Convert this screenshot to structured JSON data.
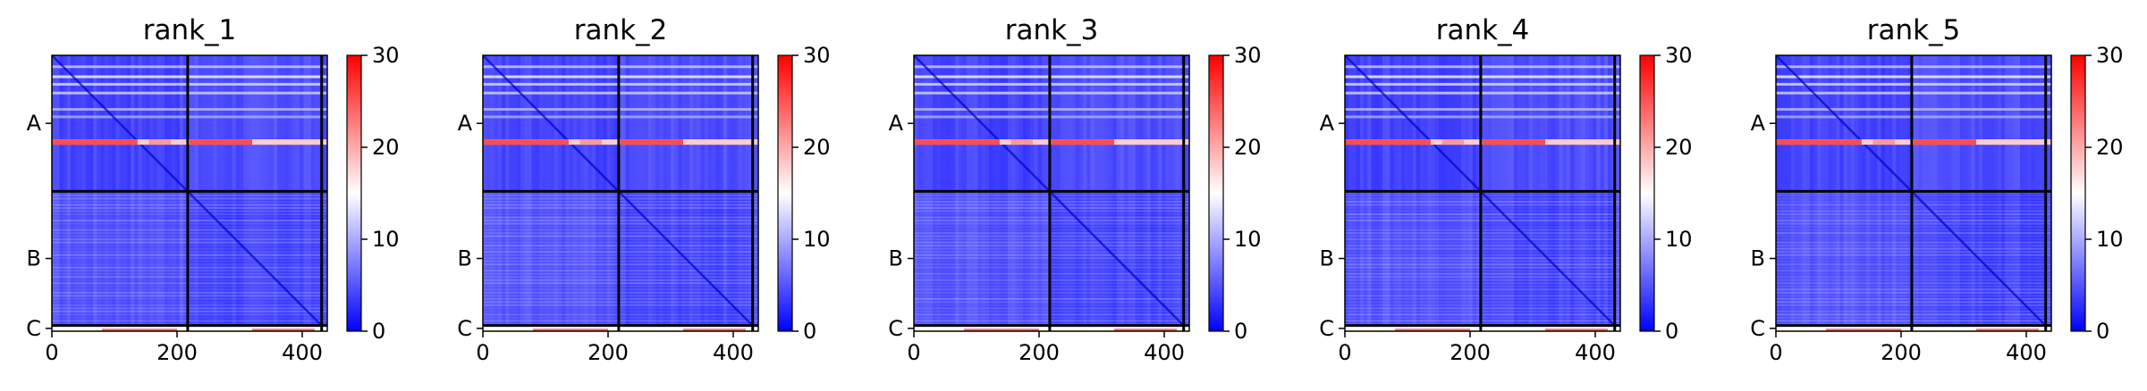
{
  "chart_data": {
    "type": "heatmap",
    "colormap": "bwr",
    "colors": {
      "low": "#0000ff",
      "mid": "#ffffff",
      "high": "#ff0000",
      "divider": "#000000"
    },
    "chains": [
      {
        "label": "A",
        "range": [
          0,
          217
        ]
      },
      {
        "label": "B",
        "range": [
          217,
          431
        ]
      },
      {
        "label": "C",
        "range": [
          431,
          440
        ]
      }
    ],
    "xlim": [
      0,
      440
    ],
    "ylim": [
      440,
      0
    ],
    "x_ticks": [
      0,
      200,
      400
    ],
    "x_tick_labels": [
      "0",
      "200",
      "400"
    ],
    "y_tick_labels": [
      "A",
      "B",
      "C"
    ],
    "colorbar": {
      "vmin": 0,
      "vmax": 30,
      "ticks": [
        0,
        10,
        20,
        30
      ],
      "tick_labels": [
        "0",
        "10",
        "20",
        "30"
      ]
    },
    "panels": [
      {
        "title": "rank_1",
        "bright_rows": [
          68,
          137
        ]
      },
      {
        "title": "rank_2",
        "bright_rows": [
          68,
          137
        ]
      },
      {
        "title": "rank_3",
        "bright_rows": [
          68,
          137
        ]
      },
      {
        "title": "rank_4",
        "bright_rows": [
          68,
          137
        ]
      },
      {
        "title": "rank_5",
        "bright_rows": [
          68,
          137
        ]
      }
    ]
  }
}
